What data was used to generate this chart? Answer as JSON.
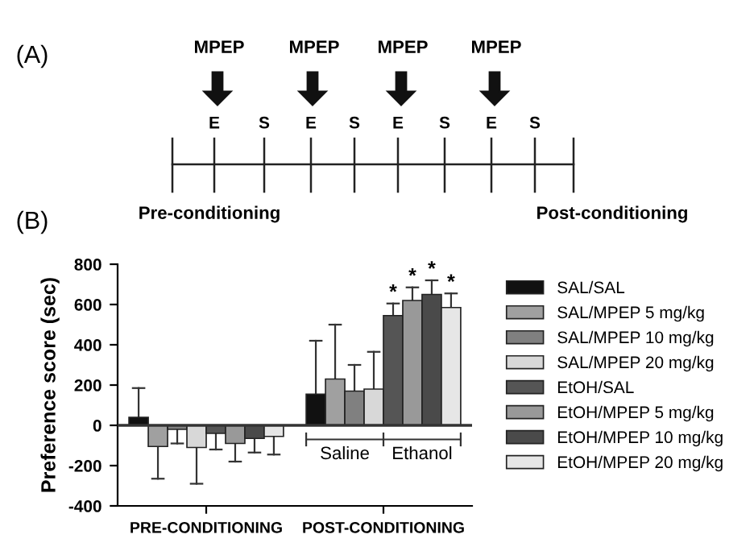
{
  "chart_data": {
    "type": "bar",
    "ylabel": "Preference score (sec)",
    "categories": [
      "PRE-CONDITIONING",
      "POST-CONDITIONING"
    ],
    "series": [
      {
        "name": "SAL/SAL",
        "color": "#111111",
        "values": [
          40,
          155
        ],
        "errors": [
          145,
          265
        ]
      },
      {
        "name": "SAL/MPEP 5 mg/kg",
        "color": "#a0a0a0",
        "values": [
          -105,
          230
        ],
        "errors": [
          160,
          270
        ]
      },
      {
        "name": "SAL/MPEP 10 mg/kg",
        "color": "#808080",
        "values": [
          -20,
          170
        ],
        "errors": [
          70,
          130
        ]
      },
      {
        "name": "SAL/MPEP 20 mg/kg",
        "color": "#d8d8d8",
        "values": [
          -110,
          180
        ],
        "errors": [
          180,
          185
        ]
      },
      {
        "name": "EtOH/SAL",
        "color": "#555555",
        "values": [
          -40,
          545
        ],
        "errors": [
          80,
          60
        ]
      },
      {
        "name": "EtOH/MPEP 5 mg/kg",
        "color": "#999999",
        "values": [
          -90,
          620
        ],
        "errors": [
          90,
          65
        ]
      },
      {
        "name": "EtOH/MPEP 10 mg/kg",
        "color": "#4a4a4a",
        "values": [
          -65,
          650
        ],
        "errors": [
          70,
          70
        ]
      },
      {
        "name": "EtOH/MPEP 20 mg/kg",
        "color": "#e6e6e6",
        "values": [
          -55,
          585
        ],
        "errors": [
          90,
          70
        ]
      }
    ],
    "ylim": [
      -400,
      800
    ],
    "yticks": [
      -400,
      -200,
      0,
      200,
      400,
      600,
      800
    ],
    "legend": "right",
    "annotations": [
      "(A)",
      "(B)",
      "MPEP",
      "MPEP",
      "MPEP",
      "MPEP",
      "E",
      "S",
      "E",
      "S",
      "E",
      "S",
      "E",
      "S",
      "Pre-conditioning",
      "Post-conditioning",
      "Saline",
      "Ethanol",
      "*",
      "*",
      "*",
      "*"
    ]
  }
}
